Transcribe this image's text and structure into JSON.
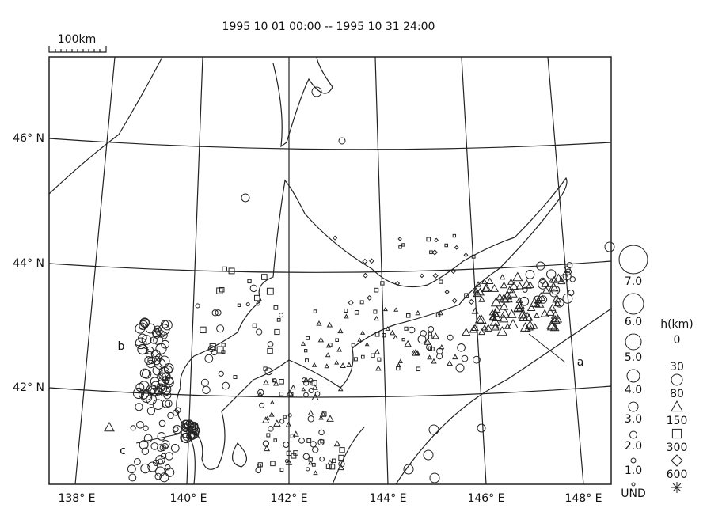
{
  "title": "1995 10 01 00:00 -- 1995 10 31 24:00",
  "scale_label": "100km",
  "latitude_labels": [
    "46° N",
    "44° N",
    "42° N"
  ],
  "longitude_labels": [
    "138° E",
    "140° E",
    "142° E",
    "144° E",
    "146° E",
    "148° E"
  ],
  "magnitude_legend": [
    "7.0",
    "6.0",
    "5.0",
    "4.0",
    "3.0",
    "2.0",
    "1.0",
    "UND"
  ],
  "depth_legend": {
    "title": "h(km)",
    "labels": [
      "0",
      "30",
      "80",
      "150",
      "300",
      "600"
    ]
  },
  "annotations": [
    "a",
    "b",
    "c"
  ]
}
